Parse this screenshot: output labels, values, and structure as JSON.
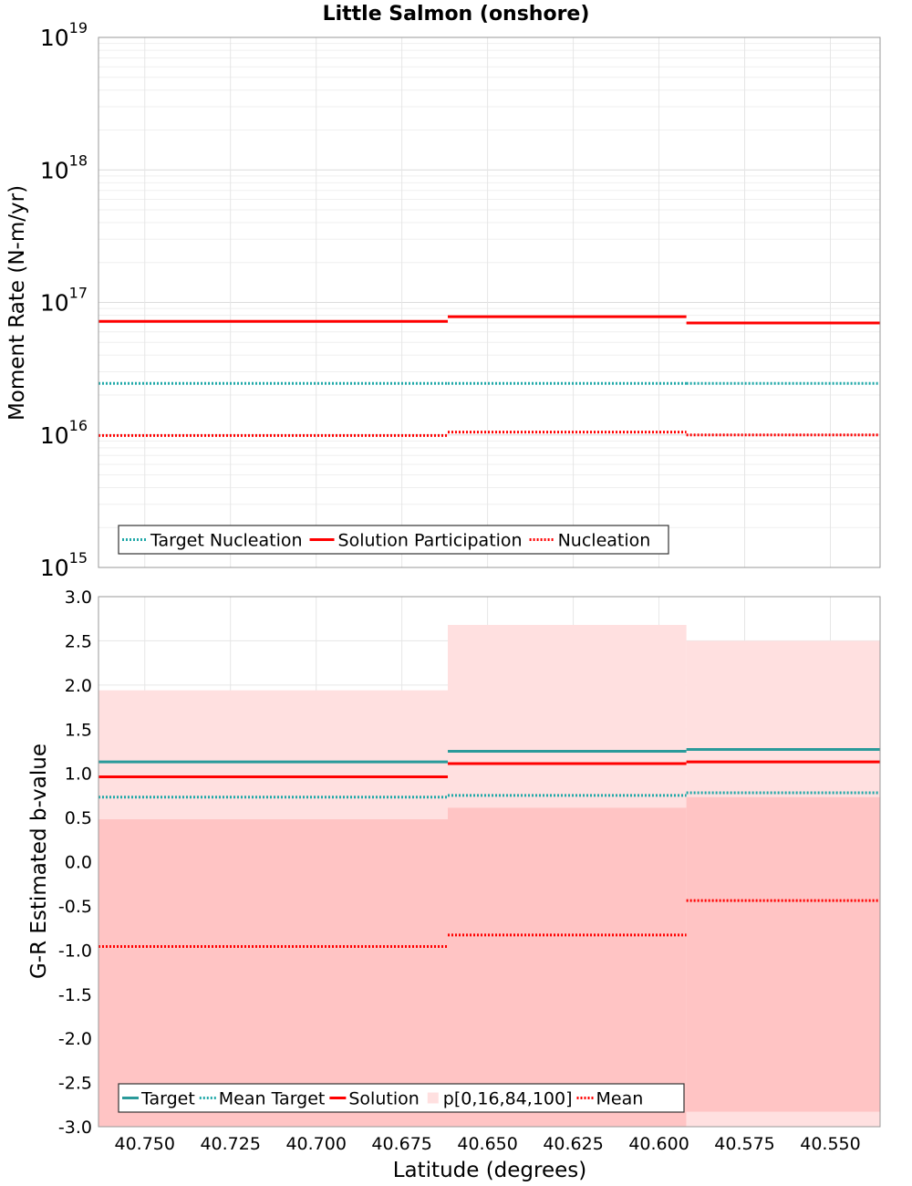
{
  "chart_data": [
    {
      "type": "line",
      "title": "Little Salmon (onshore)",
      "xlabel": "",
      "ylabel": "Moment Rate (N-m/yr)",
      "y_scale": "log",
      "ylim": [
        1000000000000000.0,
        1e+19
      ],
      "xlim": [
        40.7635,
        40.5355
      ],
      "x_reversed": true,
      "x_ticks": [],
      "y_ticks": [
        {
          "value": 1000000000000000.0,
          "base": "10",
          "exp": "15"
        },
        {
          "value": 1e+16,
          "base": "10",
          "exp": "16"
        },
        {
          "value": 1e+17,
          "base": "10",
          "exp": "17"
        },
        {
          "value": 1e+18,
          "base": "10",
          "exp": "18"
        },
        {
          "value": 1e+19,
          "base": "10",
          "exp": "19"
        }
      ],
      "bin_edges": [
        40.7635,
        40.6616,
        40.592,
        40.5355
      ],
      "grid": true,
      "legend_position": "lower-left",
      "series": [
        {
          "name": "Target Nucleation",
          "style": "dotted",
          "color": "#1fa8a8",
          "values": [
            2.45e+16,
            2.45e+16,
            2.45e+16
          ]
        },
        {
          "name": "Solution Participation",
          "style": "solid",
          "color": "#ff0000",
          "values": [
            7.2e+16,
            7.8e+16,
            7e+16
          ]
        },
        {
          "name": "Nucleation",
          "style": "dotted",
          "color": "#ff0000",
          "values": [
            9900000000000000.0,
            1.05e+16,
            1e+16
          ]
        }
      ]
    },
    {
      "type": "line",
      "title": "",
      "xlabel": "Latitude (degrees)",
      "ylabel": "G-R Estimated b-value",
      "y_scale": "linear",
      "ylim": [
        -3.0,
        3.0
      ],
      "xlim": [
        40.7635,
        40.5355
      ],
      "x_reversed": true,
      "x_ticks": [
        "40.750",
        "40.725",
        "40.700",
        "40.675",
        "40.650",
        "40.625",
        "40.600",
        "40.575",
        "40.550"
      ],
      "y_ticks": [
        "3.0",
        "2.5",
        "2.0",
        "1.5",
        "1.0",
        "0.5",
        "0.0",
        "-0.5",
        "-1.0",
        "-1.5",
        "-2.0",
        "-2.5",
        "-3.0"
      ],
      "bin_edges": [
        40.7635,
        40.6616,
        40.592,
        40.5355
      ],
      "grid": true,
      "legend_position": "lower-left",
      "bands": {
        "name": "p[0,16,84,100]",
        "outer_color": "#ffe0e0",
        "inner_color": "#ffc4c4",
        "p0": [
          -3.0,
          -3.0,
          -2.83
        ],
        "p16": [
          -3.0,
          -3.0,
          -3.0
        ],
        "p84": [
          0.48,
          0.61,
          0.73
        ],
        "p100": [
          1.94,
          2.68,
          2.5
        ]
      },
      "series": [
        {
          "name": "Target",
          "style": "solid",
          "color": "#2a9a9a",
          "values": [
            1.13,
            1.25,
            1.27
          ]
        },
        {
          "name": "Mean Target",
          "style": "dotted",
          "color": "#1fa8a8",
          "values": [
            0.73,
            0.75,
            0.78
          ]
        },
        {
          "name": "Solution",
          "style": "solid",
          "color": "#ff0000",
          "values": [
            0.96,
            1.11,
            1.13
          ]
        },
        {
          "name": "Mean",
          "style": "dotted",
          "color": "#ff0000",
          "values": [
            -0.96,
            -0.83,
            -0.44
          ]
        }
      ],
      "legend_order": [
        "Target",
        "Mean Target",
        "Solution",
        "p[0,16,84,100]",
        "Mean"
      ]
    }
  ]
}
